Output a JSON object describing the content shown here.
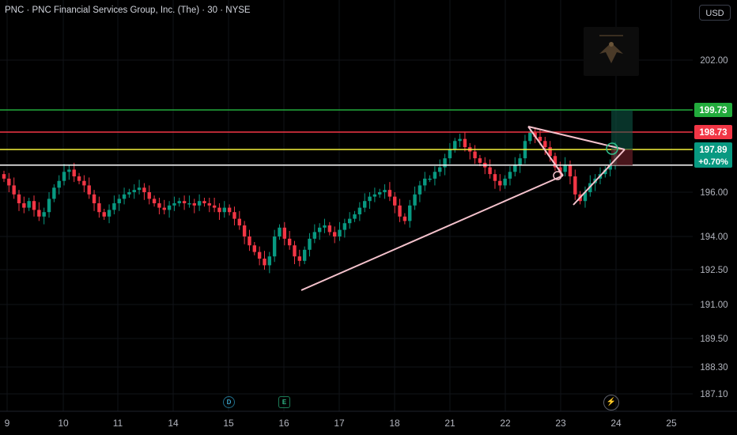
{
  "header": {
    "title": "PNC · PNC Financial Services Group, Inc. (The) · 30 · NYSE",
    "currency": "USD"
  },
  "colors": {
    "background": "#000000",
    "up": "#089981",
    "down": "#f23645",
    "resistance_line": "#f23645",
    "target_line": "#22ab3c",
    "yellow_line": "#f5f23c",
    "white_line": "#ffffff",
    "trendline": "#f4c2cc"
  },
  "events": [
    {
      "label": "D",
      "type": "dividend"
    },
    {
      "label": "E",
      "type": "earnings"
    }
  ],
  "flash_icon": "lightning-icon",
  "chart_data": {
    "type": "candlestick",
    "title": "PNC · PNC Financial Services Group, Inc. (The) · 30 · NYSE",
    "y_ticks": [
      202.0,
      199.73,
      198.73,
      197.89,
      196.0,
      194.0,
      192.5,
      191.0,
      189.5,
      188.3,
      187.1
    ],
    "x_ticks": [
      "9",
      "10",
      "11",
      "14",
      "15",
      "16",
      "17",
      "18",
      "21",
      "22",
      "23",
      "24",
      "25"
    ],
    "ylim": [
      186.5,
      204.0
    ],
    "horizontal_levels": [
      {
        "value": 199.73,
        "color": "#22ab3c",
        "label": "199.73"
      },
      {
        "value": 198.73,
        "color": "#f23645",
        "label": "198.73"
      },
      {
        "value": 197.89,
        "color": "#f5f23c",
        "label": "197.89"
      },
      {
        "value": 197.2,
        "color": "#ffffff",
        "label": ""
      }
    ],
    "last_price": {
      "value": 197.89,
      "change": "+0.70%",
      "color": "#089981"
    },
    "close_series": [
      196.6,
      196.3,
      195.9,
      195.5,
      195.3,
      195.6,
      195.2,
      194.9,
      195.1,
      195.7,
      196.2,
      196.5,
      196.9,
      197.0,
      196.7,
      196.5,
      196.3,
      195.9,
      195.5,
      195.1,
      194.9,
      195.2,
      195.5,
      195.7,
      195.9,
      196.0,
      196.1,
      196.2,
      196.0,
      195.7,
      195.5,
      195.3,
      195.2,
      195.4,
      195.5,
      195.6,
      195.5,
      195.5,
      195.4,
      195.6,
      195.5,
      195.4,
      195.3,
      195.1,
      195.3,
      195.1,
      194.8,
      194.5,
      194.0,
      193.6,
      193.3,
      193.0,
      192.7,
      193.1,
      194.0,
      194.4,
      193.9,
      193.6,
      193.1,
      192.9,
      193.4,
      193.9,
      194.2,
      194.4,
      194.5,
      194.2,
      194.0,
      194.3,
      194.6,
      194.8,
      195.0,
      195.3,
      195.6,
      195.8,
      195.9,
      196.0,
      196.1,
      195.8,
      195.4,
      194.9,
      194.7,
      195.4,
      195.9,
      196.3,
      196.6,
      196.6,
      196.9,
      197.1,
      197.5,
      197.9,
      198.3,
      198.4,
      198.0,
      197.8,
      197.5,
      197.3,
      197.1,
      196.8,
      196.5,
      196.3,
      196.6,
      196.9,
      197.2,
      197.5,
      198.3,
      198.7,
      198.5,
      198.3,
      198.0,
      197.6,
      197.1,
      196.9,
      197.2,
      196.7,
      195.9,
      195.6,
      196.0,
      196.4,
      196.6,
      196.8,
      197.0,
      197.2,
      197.9
    ]
  }
}
